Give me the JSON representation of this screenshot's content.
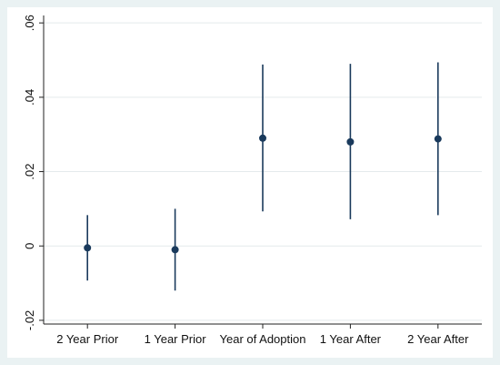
{
  "chart_data": {
    "type": "scatter",
    "subtype": "coefficient-plot-with-confidence-intervals",
    "title": "",
    "xlabel": "",
    "ylabel": "",
    "categories": [
      "2 Year Prior",
      "1 Year Prior",
      "Year of Adoption",
      "1 Year After",
      "2 Year After"
    ],
    "estimates": [
      -0.0005,
      -0.001,
      0.029,
      0.028,
      0.0288
    ],
    "ci_low": [
      -0.0093,
      -0.012,
      0.0093,
      0.0072,
      0.0083
    ],
    "ci_high": [
      0.0083,
      0.01,
      0.0488,
      0.049,
      0.0494
    ],
    "ylim": [
      -0.021,
      0.062
    ],
    "yticks": [
      -0.02,
      0,
      0.02,
      0.04,
      0.06
    ],
    "ytick_labels": [
      "-.02",
      "0",
      ".02",
      ".04",
      ".06"
    ],
    "grid": true,
    "legend": "none",
    "colors": {
      "frame_background": "#eaf2f3",
      "plot_background": "#ffffff",
      "marker": "#1a3a5c",
      "ci_line": "#1a3a5c",
      "grid": "#e4eaec",
      "axis": "#222222"
    }
  }
}
